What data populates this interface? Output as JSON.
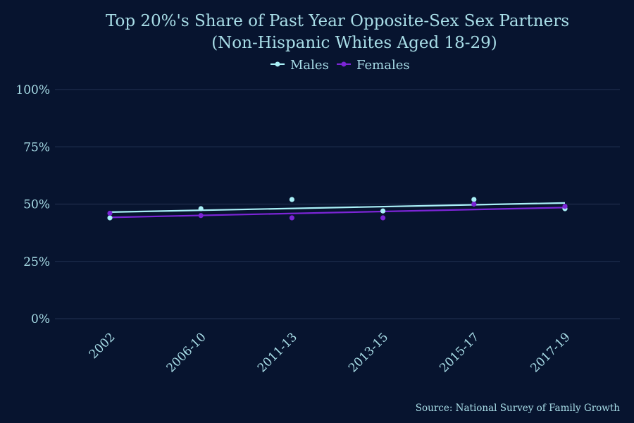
{
  "chart_data": {
    "type": "scatter",
    "title": "Top 20%'s Share of Past Year Opposite-Sex Sex Partners",
    "subtitle": "(Non-Hispanic Whites Aged 18-29)",
    "categories": [
      "2002",
      "2006-10",
      "2011-13",
      "2013-15",
      "2015-17",
      "2017-19"
    ],
    "ylim": [
      0,
      100
    ],
    "yticks": [
      0,
      25,
      50,
      75,
      100
    ],
    "ytick_labels": [
      "0%",
      "25%",
      "50%",
      "75%",
      "100%"
    ],
    "grid": true,
    "legend_position": "top",
    "series": [
      {
        "name": "Males",
        "color": "#a9f0f7",
        "values": [
          44,
          48,
          52,
          47,
          52,
          48
        ],
        "trend": [
          46.5,
          50.5
        ]
      },
      {
        "name": "Females",
        "color": "#7b25d6",
        "values": [
          46,
          45,
          44,
          44,
          50,
          49
        ],
        "trend": [
          44.2,
          48.5
        ]
      }
    ],
    "source": "Source: National Survey of Family Growth"
  }
}
